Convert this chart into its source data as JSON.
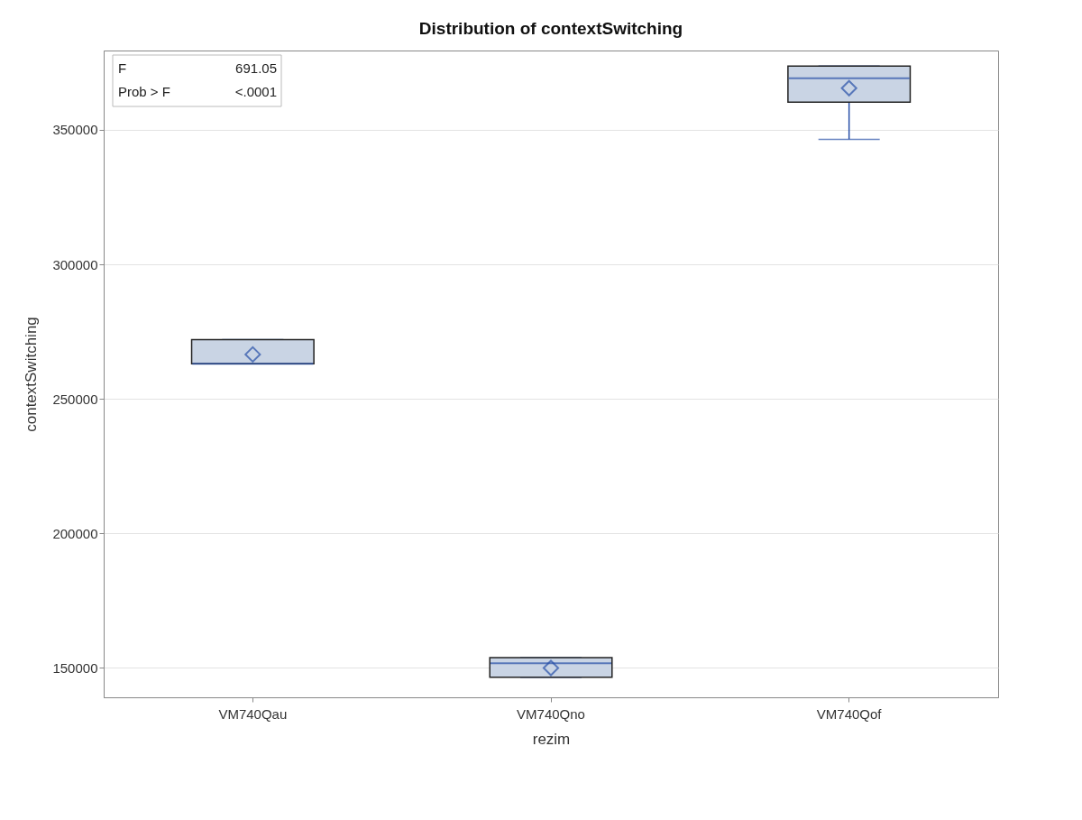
{
  "chart_data": {
    "type": "box",
    "title": "Distribution of contextSwitching",
    "xlabel": "rezim",
    "ylabel": "contextSwitching",
    "categories": [
      "VM740Qau",
      "VM740Qno",
      "VM740Qof"
    ],
    "boxes": [
      {
        "low": 263000,
        "q1": 263000,
        "median": 263000,
        "q3": 272000,
        "high": 272000,
        "mean": 266500
      },
      {
        "low": 146500,
        "q1": 146500,
        "median": 151700,
        "q3": 153800,
        "high": 153800,
        "mean": 149900
      },
      {
        "low": 346500,
        "q1": 360300,
        "median": 369200,
        "q3": 373700,
        "high": 373700,
        "mean": 365500
      }
    ],
    "color": "#c9d4e4",
    "marker": "diamond",
    "grid": "y",
    "ylim": [
      139000,
      379500
    ],
    "yticks": [
      150000,
      200000,
      250000,
      300000,
      350000
    ],
    "annotations": [
      "F 691.05",
      "Prob > F <.0001"
    ]
  }
}
